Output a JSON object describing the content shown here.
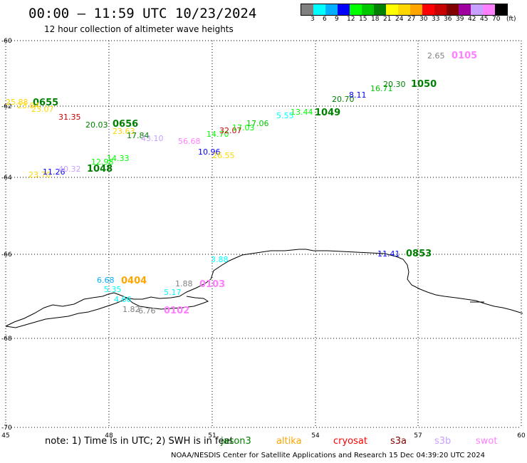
{
  "title": "00:00 – 11:59 UTC 10/23/2024",
  "subtitle": "12 hour collection of altimeter wave heights",
  "color_scale": {
    "colors": [
      "#808080",
      "#00ffff",
      "#00b0ff",
      "#0000ff",
      "#00ff00",
      "#00c800",
      "#008000",
      "#ffff00",
      "#ffd700",
      "#ffa500",
      "#ff0000",
      "#c80000",
      "#800000",
      "#a000a0",
      "#c8a0ff",
      "#ff80ff",
      "#000000"
    ],
    "labels": [
      "3",
      "6",
      "9",
      "12",
      "15",
      "18",
      "21",
      "24",
      "27",
      "30",
      "33",
      "36",
      "39",
      "42",
      "45",
      "70"
    ],
    "unit": "(ft)"
  },
  "axes": {
    "lon_ticks": [
      "45",
      "48",
      "51",
      "54",
      "57",
      "60"
    ],
    "lat_ticks": [
      "-60",
      "-62",
      "-64",
      "-66",
      "-68",
      "-70"
    ]
  },
  "passes": [
    {
      "label": "0655",
      "color": "#008000"
    },
    {
      "label": "0656",
      "color": "#008000"
    },
    {
      "label": "1048",
      "color": "#008000"
    },
    {
      "label": "1049",
      "color": "#008000"
    },
    {
      "label": "1050",
      "color": "#008000"
    },
    {
      "label": "0853",
      "color": "#008000"
    },
    {
      "label": "0105",
      "color": "#ff80ff"
    },
    {
      "label": "0103",
      "color": "#ff80ff"
    },
    {
      "label": "0102",
      "color": "#ff80ff"
    },
    {
      "label": "0404",
      "color": "#ffa500"
    }
  ],
  "wave_values": [
    {
      "text": "25.88",
      "color": "#ffd700"
    },
    {
      "text": "23.84",
      "color": "#ffd700"
    },
    {
      "text": "23.07",
      "color": "#ffd700"
    },
    {
      "text": "31.35",
      "color": "#c80000"
    },
    {
      "text": "20.03",
      "color": "#008000"
    },
    {
      "text": "23.63",
      "color": "#ffd700"
    },
    {
      "text": "17.84",
      "color": "#008000"
    },
    {
      "text": "43.10",
      "color": "#c8a0ff"
    },
    {
      "text": "56.68",
      "color": "#ff80ff"
    },
    {
      "text": "14.70",
      "color": "#00ff00"
    },
    {
      "text": "32.07",
      "color": "#c80000"
    },
    {
      "text": "17.03",
      "color": "#00ff00"
    },
    {
      "text": "17.06",
      "color": "#00c800"
    },
    {
      "text": "5.55",
      "color": "#00ffff"
    },
    {
      "text": "13.44",
      "color": "#00ff00"
    },
    {
      "text": "20.70",
      "color": "#008000"
    },
    {
      "text": "8.11",
      "color": "#0000ff"
    },
    {
      "text": "16.71",
      "color": "#00c800"
    },
    {
      "text": "20.30",
      "color": "#008000"
    },
    {
      "text": "2.65",
      "color": "#808080"
    },
    {
      "text": "12.98",
      "color": "#00ff00"
    },
    {
      "text": "14.33",
      "color": "#00ff00"
    },
    {
      "text": "10.96",
      "color": "#0000ff"
    },
    {
      "text": "26.55",
      "color": "#ffd700"
    },
    {
      "text": "23.70",
      "color": "#ffd700"
    },
    {
      "text": "11.26",
      "color": "#0000ff"
    },
    {
      "text": "40.32",
      "color": "#c8a0ff"
    },
    {
      "text": "11.41",
      "color": "#0000ff"
    },
    {
      "text": "3.88",
      "color": "#00ffff"
    },
    {
      "text": "6.68",
      "color": "#00b0ff"
    },
    {
      "text": "5.35",
      "color": "#00ffff"
    },
    {
      "text": "4.66",
      "color": "#00ffff"
    },
    {
      "text": "1.88",
      "color": "#808080"
    },
    {
      "text": "5.17",
      "color": "#00ffff"
    },
    {
      "text": "1.82",
      "color": "#808080"
    },
    {
      "text": "6.76",
      "color": "#808080"
    }
  ],
  "note": "note: 1) Time is in UTC; 2) SWH is in feet",
  "satellites": [
    {
      "name": "jason3",
      "color": "#008000"
    },
    {
      "name": "altika",
      "color": "#ffa500"
    },
    {
      "name": "cryosat",
      "color": "#ff0000"
    },
    {
      "name": "s3a",
      "color": "#800000"
    },
    {
      "name": "s3b",
      "color": "#c8a0ff"
    },
    {
      "name": "swot",
      "color": "#ff80ff"
    }
  ],
  "footer": "NOAA/NESDIS Center for Satellite Applications and Research   15 Dec 04:39:20 UTC 2024"
}
